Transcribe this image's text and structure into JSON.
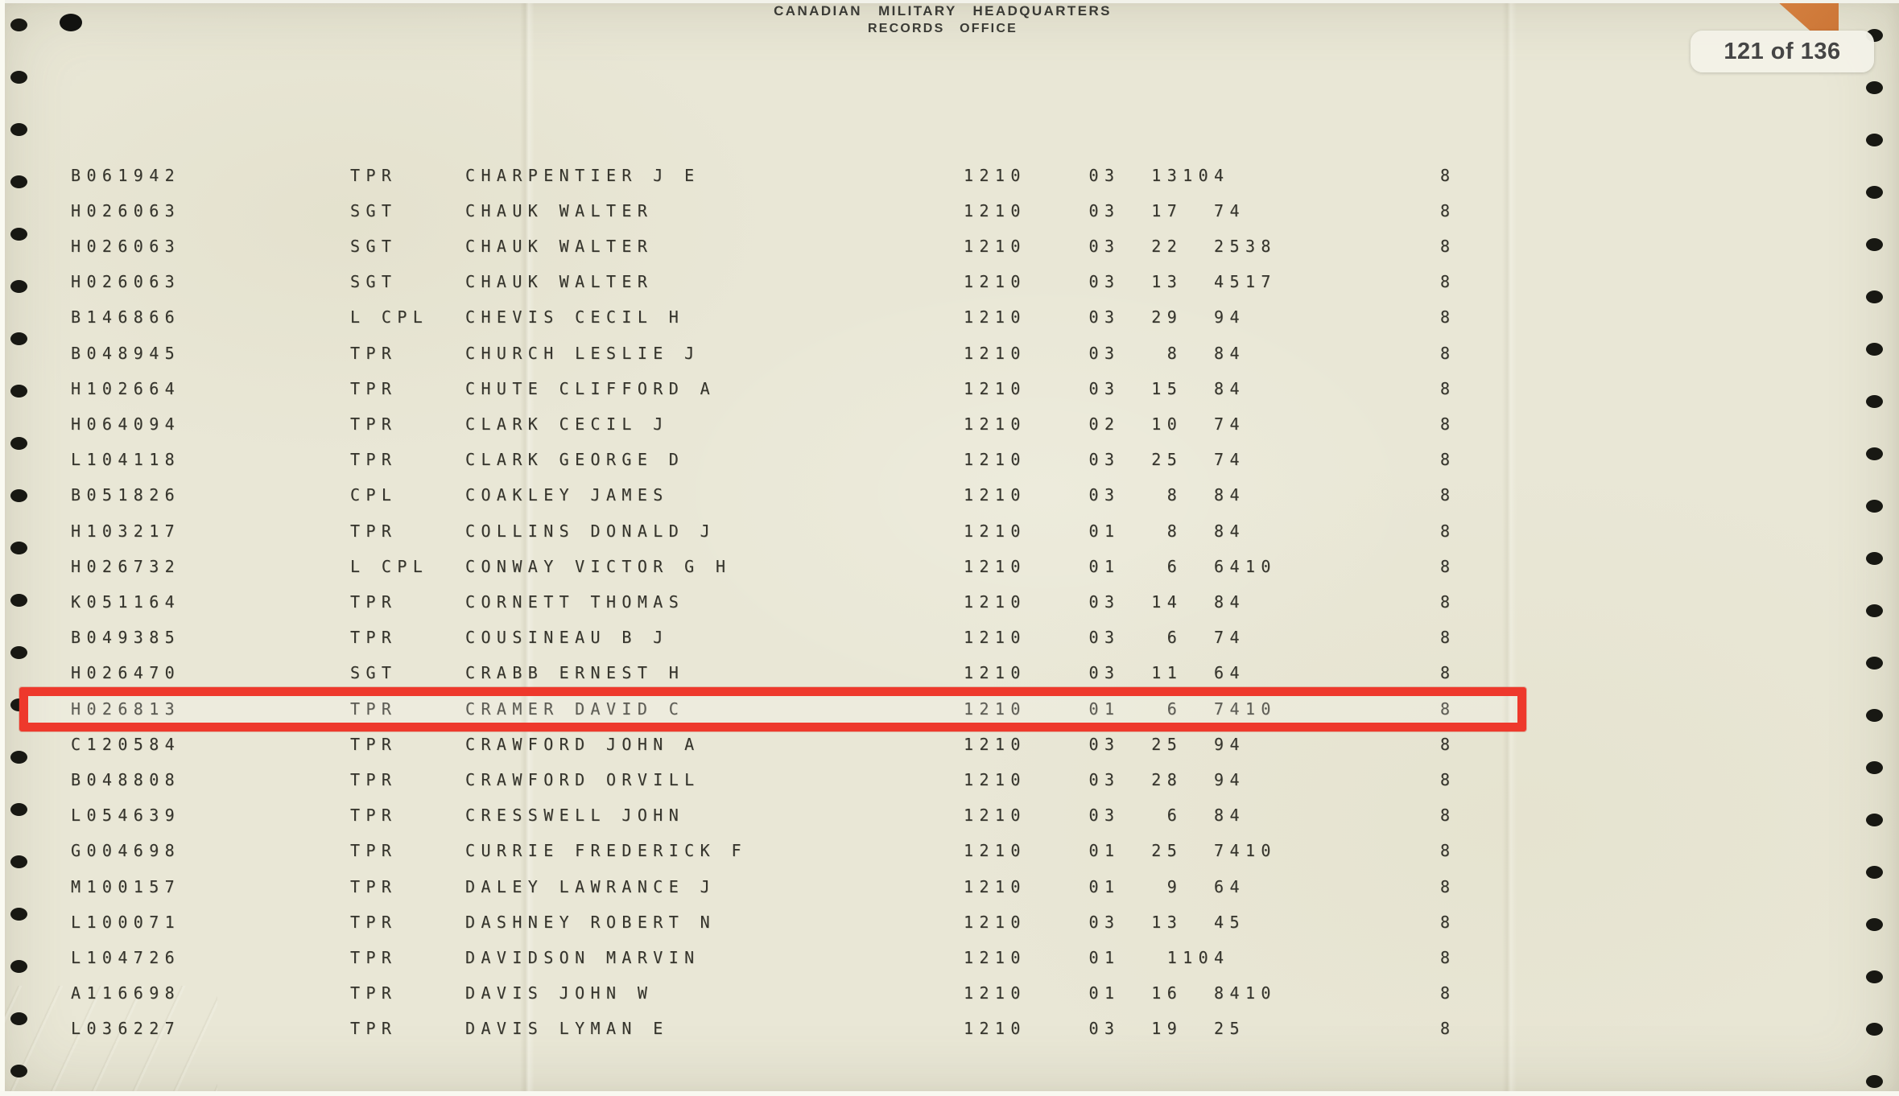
{
  "viewer": {
    "page_indicator": "121 of 136"
  },
  "document": {
    "header": {
      "line1": "CANADIAN MILITARY HEADQUARTERS",
      "line2": "RECORDS OFFICE"
    },
    "colors": {
      "highlight_red": "#ee392c",
      "corner_tab_orange": "#d4803f",
      "paper": "#e9e7d6",
      "ink": "#35342c"
    },
    "rows": [
      {
        "service_no": "B061942",
        "rank": "TPR",
        "name": "CHARPENTIER J E",
        "col1": "1210",
        "col2": "03",
        "col3": "13104",
        "col4": "8",
        "highlighted": false
      },
      {
        "service_no": "H026063",
        "rank": "SGT",
        "name": "CHAUK WALTER",
        "col1": "1210",
        "col2": "03",
        "col3": "17  74",
        "col4": "8",
        "highlighted": false
      },
      {
        "service_no": "H026063",
        "rank": "SGT",
        "name": "CHAUK WALTER",
        "col1": "1210",
        "col2": "03",
        "col3": "22  2538",
        "col4": "8",
        "highlighted": false
      },
      {
        "service_no": "H026063",
        "rank": "SGT",
        "name": "CHAUK WALTER",
        "col1": "1210",
        "col2": "03",
        "col3": "13  4517",
        "col4": "8",
        "highlighted": false
      },
      {
        "service_no": "B146866",
        "rank": "L CPL",
        "name": "CHEVIS CECIL H",
        "col1": "1210",
        "col2": "03",
        "col3": "29  94",
        "col4": "8",
        "highlighted": false
      },
      {
        "service_no": "B048945",
        "rank": "TPR",
        "name": "CHURCH LESLIE J",
        "col1": "1210",
        "col2": "03",
        "col3": " 8  84",
        "col4": "8",
        "highlighted": false
      },
      {
        "service_no": "H102664",
        "rank": "TPR",
        "name": "CHUTE CLIFFORD A",
        "col1": "1210",
        "col2": "03",
        "col3": "15  84",
        "col4": "8",
        "highlighted": false
      },
      {
        "service_no": "H064094",
        "rank": "TPR",
        "name": "CLARK CECIL J",
        "col1": "1210",
        "col2": "02",
        "col3": "10  74",
        "col4": "8",
        "highlighted": false
      },
      {
        "service_no": "L104118",
        "rank": "TPR",
        "name": "CLARK GEORGE D",
        "col1": "1210",
        "col2": "03",
        "col3": "25  74",
        "col4": "8",
        "highlighted": false
      },
      {
        "service_no": "B051826",
        "rank": "CPL",
        "name": "COAKLEY JAMES",
        "col1": "1210",
        "col2": "03",
        "col3": " 8  84",
        "col4": "8",
        "highlighted": false
      },
      {
        "service_no": "H103217",
        "rank": "TPR",
        "name": "COLLINS DONALD J",
        "col1": "1210",
        "col2": "01",
        "col3": " 8  84",
        "col4": "8",
        "highlighted": false
      },
      {
        "service_no": "H026732",
        "rank": "L CPL",
        "name": "CONWAY VICTOR G H",
        "col1": "1210",
        "col2": "01",
        "col3": " 6  6410",
        "col4": "8",
        "highlighted": false
      },
      {
        "service_no": "K051164",
        "rank": "TPR",
        "name": "CORNETT THOMAS",
        "col1": "1210",
        "col2": "03",
        "col3": "14  84",
        "col4": "8",
        "highlighted": false
      },
      {
        "service_no": "B049385",
        "rank": "TPR",
        "name": "COUSINEAU B J",
        "col1": "1210",
        "col2": "03",
        "col3": " 6  74",
        "col4": "8",
        "highlighted": false
      },
      {
        "service_no": "H026470",
        "rank": "SGT",
        "name": "CRABB ERNEST H",
        "col1": "1210",
        "col2": "03",
        "col3": "11  64",
        "col4": "8",
        "highlighted": false
      },
      {
        "service_no": "H026813",
        "rank": "TPR",
        "name": "CRAMER DAVID C",
        "col1": "1210",
        "col2": "01",
        "col3": " 6  7410",
        "col4": "8",
        "highlighted": true
      },
      {
        "service_no": "C120584",
        "rank": "TPR",
        "name": "CRAWFORD JOHN A",
        "col1": "1210",
        "col2": "03",
        "col3": "25  94",
        "col4": "8",
        "highlighted": false
      },
      {
        "service_no": "B048808",
        "rank": "TPR",
        "name": "CRAWFORD ORVILL",
        "col1": "1210",
        "col2": "03",
        "col3": "28  94",
        "col4": "8",
        "highlighted": false
      },
      {
        "service_no": "L054639",
        "rank": "TPR",
        "name": "CRESSWELL JOHN",
        "col1": "1210",
        "col2": "03",
        "col3": " 6  84",
        "col4": "8",
        "highlighted": false
      },
      {
        "service_no": "G004698",
        "rank": "TPR",
        "name": "CURRIE FREDERICK F",
        "col1": "1210",
        "col2": "01",
        "col3": "25  7410",
        "col4": "8",
        "highlighted": false
      },
      {
        "service_no": "M100157",
        "rank": "TPR",
        "name": "DALEY LAWRANCE J",
        "col1": "1210",
        "col2": "01",
        "col3": " 9  64",
        "col4": "8",
        "highlighted": false
      },
      {
        "service_no": "L100071",
        "rank": "TPR",
        "name": "DASHNEY ROBERT N",
        "col1": "1210",
        "col2": "03",
        "col3": "13  45",
        "col4": "8",
        "highlighted": false
      },
      {
        "service_no": "L104726",
        "rank": "TPR",
        "name": "DAVIDSON MARVIN",
        "col1": "1210",
        "col2": "01",
        "col3": " 1104",
        "col4": "8",
        "highlighted": false
      },
      {
        "service_no": "A116698",
        "rank": "TPR",
        "name": "DAVIS JOHN W",
        "col1": "1210",
        "col2": "01",
        "col3": "16  8410",
        "col4": "8",
        "highlighted": false
      },
      {
        "service_no": "L036227",
        "rank": "TPR",
        "name": "DAVIS LYMAN E",
        "col1": "1210",
        "col2": "03",
        "col3": "19  25",
        "col4": "8",
        "highlighted": false
      }
    ]
  }
}
